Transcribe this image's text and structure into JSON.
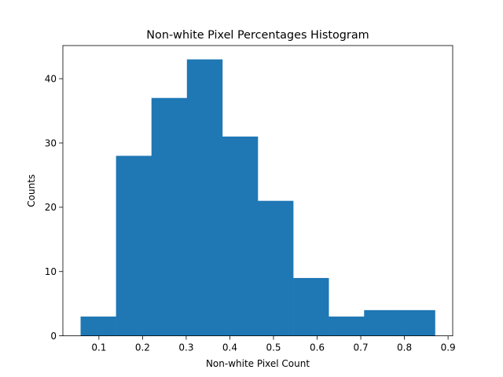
{
  "chart_data": {
    "type": "bar",
    "subtype": "histogram",
    "title": "Non-white Pixel Percentages Histogram",
    "xlabel": "Non-white Pixel Count",
    "ylabel": "Counts",
    "bin_edges": [
      0.058,
      0.1392,
      0.2204,
      0.3016,
      0.3828,
      0.464,
      0.5452,
      0.6264,
      0.7076,
      0.7888,
      0.87
    ],
    "values": [
      3,
      28,
      37,
      43,
      31,
      21,
      9,
      3,
      4,
      4
    ],
    "xlim": [
      0.0174,
      0.9106
    ],
    "ylim": [
      0,
      45.15
    ],
    "xticks": [
      0.1,
      0.2,
      0.3,
      0.4,
      0.5,
      0.6,
      0.7,
      0.8,
      0.9
    ],
    "xtick_labels": [
      "0.1",
      "0.2",
      "0.3",
      "0.4",
      "0.5",
      "0.6",
      "0.7",
      "0.8",
      "0.9"
    ],
    "yticks": [
      0,
      10,
      20,
      30,
      40
    ],
    "ytick_labels": [
      "0",
      "10",
      "20",
      "30",
      "40"
    ],
    "bar_color": "#1f77b4",
    "grid": false,
    "legend": "none"
  }
}
